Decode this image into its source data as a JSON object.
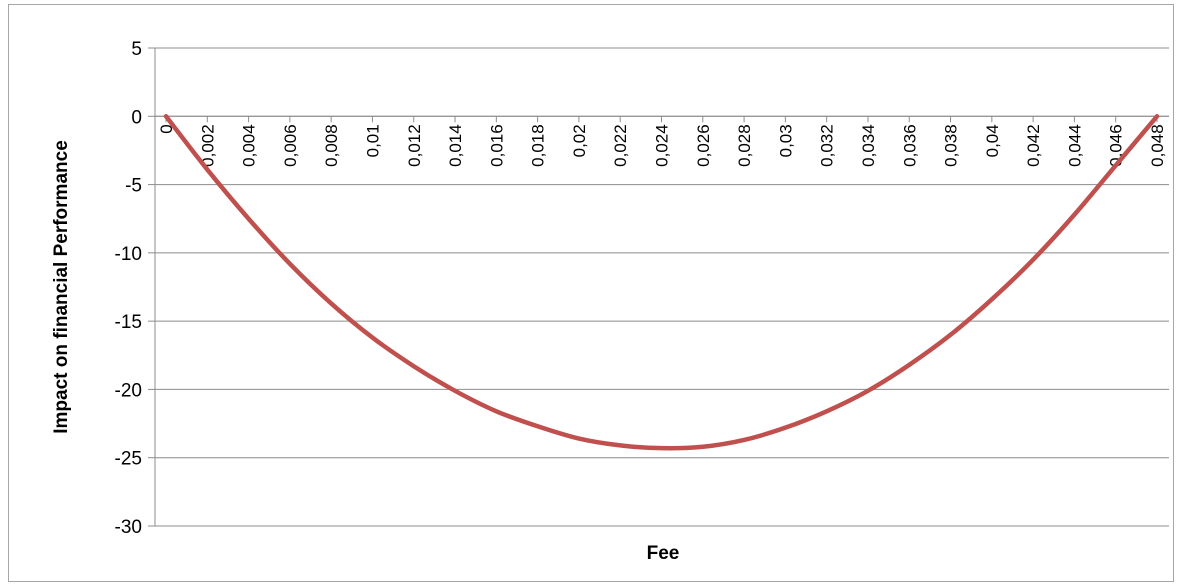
{
  "chart_data": {
    "type": "line",
    "title": "",
    "xlabel": "Fee",
    "ylabel": "Impact on financial Performance",
    "ylim": [
      -30,
      5
    ],
    "yticks": [
      "5",
      "0",
      "-5",
      "-10",
      "-15",
      "-20",
      "-25",
      "-30"
    ],
    "yticks_values": [
      5,
      0,
      -5,
      -10,
      -15,
      -20,
      -25,
      -30
    ],
    "categories": [
      "0",
      "0,002",
      "0,004",
      "0,006",
      "0,008",
      "0,01",
      "0,012",
      "0,014",
      "0,016",
      "0,018",
      "0,02",
      "0,022",
      "0,024",
      "0,026",
      "0,028",
      "0,03",
      "0,032",
      "0,034",
      "0,036",
      "0,038",
      "0,04",
      "0,042",
      "0,044",
      "0,046",
      "0,048"
    ],
    "grid": "horizontal",
    "legend": "none",
    "series": [
      {
        "color": "#c0504d",
        "x": [
          0,
          0.002,
          0.004,
          0.006,
          0.008,
          0.01,
          0.012,
          0.014,
          0.016,
          0.018,
          0.02,
          0.022,
          0.024,
          0.026,
          0.028,
          0.03,
          0.032,
          0.034,
          0.036,
          0.038,
          0.04,
          0.042,
          0.044,
          0.046,
          0.048
        ],
        "values": [
          0,
          -3.9,
          -7.5,
          -10.8,
          -13.7,
          -16.2,
          -18.3,
          -20.1,
          -21.6,
          -22.7,
          -23.6,
          -24.1,
          -24.3,
          -24.2,
          -23.7,
          -22.8,
          -21.6,
          -20.1,
          -18.2,
          -16.0,
          -13.4,
          -10.5,
          -7.2,
          -3.6,
          0
        ]
      }
    ]
  }
}
